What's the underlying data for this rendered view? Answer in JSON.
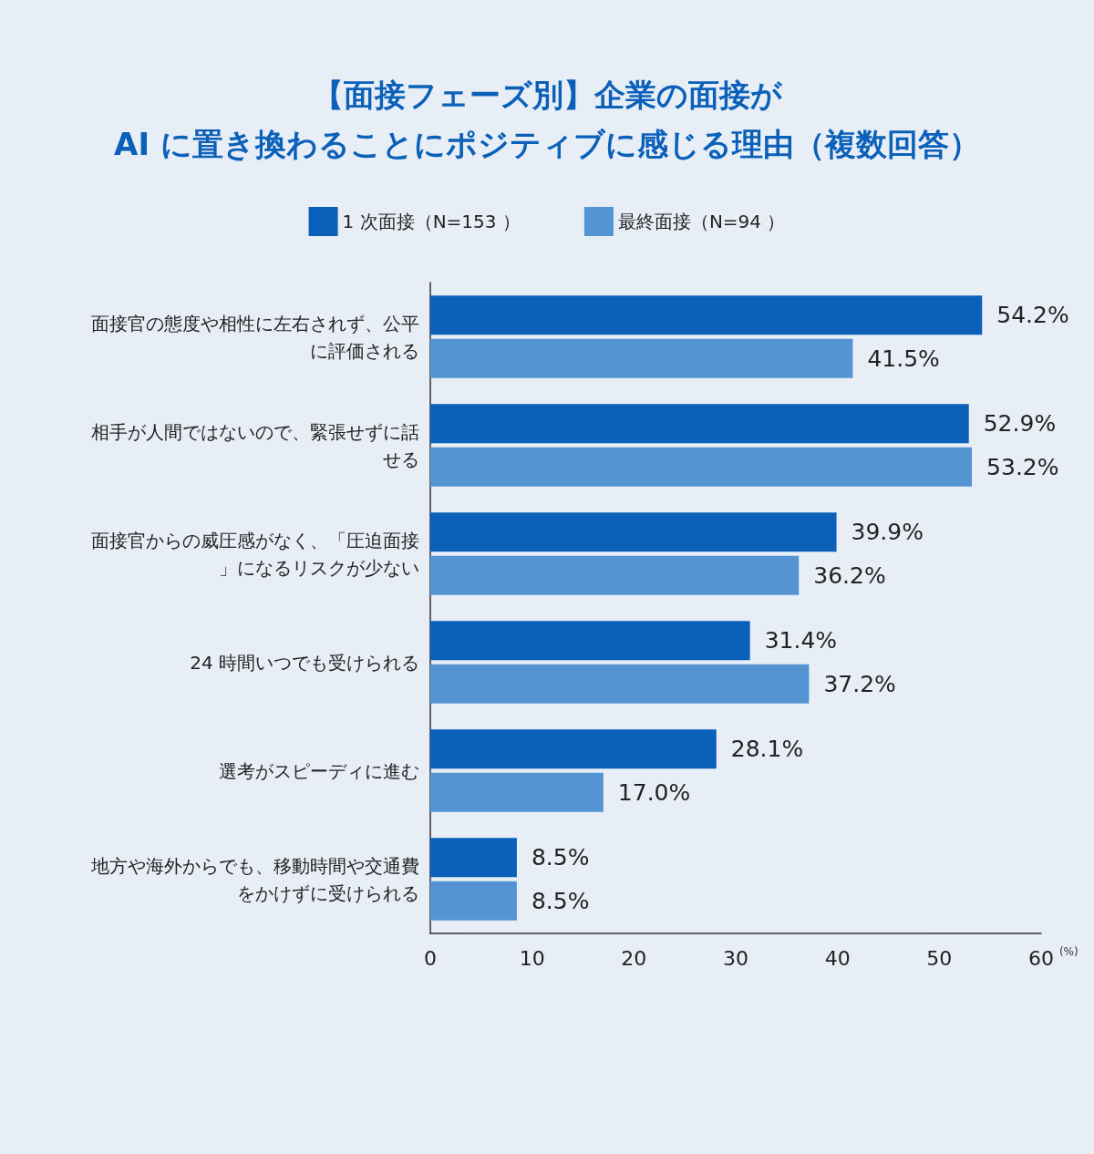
{
  "chart_data": {
    "type": "bar",
    "orientation": "horizontal",
    "title": "【面接フェーズ別】企業の面接が\nAI に置き換わることにポジティブに感じる理由（複数回答）",
    "categories": [
      "面接官の態度や相性に左右されず、公平に評価される",
      "相手が人間ではないので、緊張せずに話せる",
      "面接官からの威圧感がなく、「圧迫面接」になるリスクが少ない",
      "24 時間いつでも受けられる",
      "選考がスピーディに進む",
      "地方や海外からでも、移動時間や交通費をかけずに受けられる"
    ],
    "series": [
      {
        "name": "1 次面接（N=153 ）",
        "color": "#0b60b9",
        "values": [
          54.2,
          52.9,
          39.9,
          31.4,
          28.1,
          8.5
        ],
        "value_labels": [
          "54.2%",
          "52.9%",
          "39.9%",
          "31.4%",
          "28.1%",
          "8.5%"
        ]
      },
      {
        "name": "最終面接（N=94 ）",
        "color": "#5494d3",
        "values": [
          41.5,
          53.2,
          36.2,
          37.2,
          17.0,
          8.5
        ],
        "value_labels": [
          "41.5%",
          "53.2%",
          "36.2%",
          "37.2%",
          "17.0%",
          "8.5%"
        ]
      }
    ],
    "xlabel": "(%)",
    "xlim": [
      0,
      60
    ],
    "xticks": [
      0,
      10,
      20,
      30,
      40,
      50,
      60
    ],
    "grid": false,
    "legend": "top"
  }
}
